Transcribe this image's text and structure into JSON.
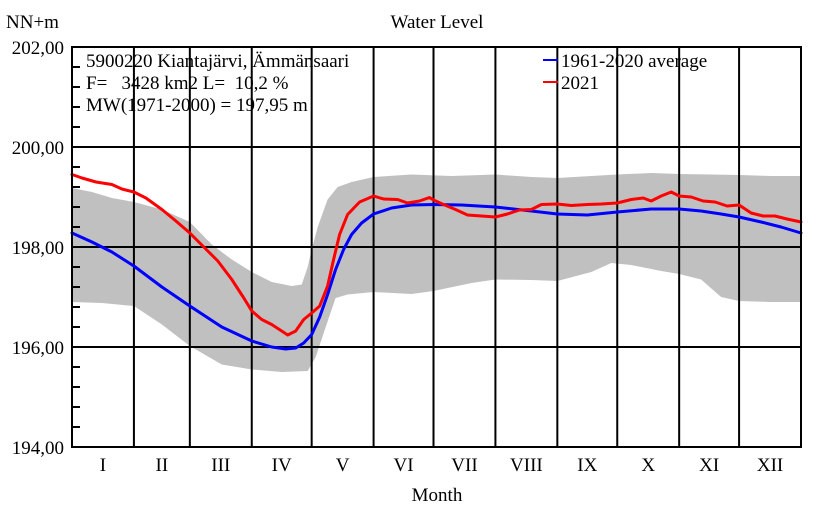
{
  "chart_data": {
    "type": "line",
    "title": "Water Level",
    "ylabel": "NN+m",
    "xlabel": "Month",
    "ylim": [
      194,
      202
    ],
    "xlim_days": [
      0,
      365
    ],
    "yticks": [
      {
        "value": 194,
        "label": "194,00"
      },
      {
        "value": 196,
        "label": "196,00"
      },
      {
        "value": 198,
        "label": "198,00"
      },
      {
        "value": 200,
        "label": "200,00"
      },
      {
        "value": 202,
        "label": "202,00"
      }
    ],
    "months": [
      "I",
      "II",
      "III",
      "IV",
      "V",
      "VI",
      "VII",
      "VIII",
      "IX",
      "X",
      "XI",
      "XII"
    ],
    "month_start_days": [
      0,
      31,
      59,
      90,
      120,
      151,
      181,
      212,
      243,
      273,
      304,
      334
    ],
    "grid": true,
    "legend_position": "top-right",
    "info_lines": [
      "5900220 Kiantajärvi, Ämmänsaari",
      "F=   3428 km2 L=  10,2 %",
      "MW(1971-2000) = 197,95 m"
    ],
    "band": {
      "name": "range",
      "color": "#c0c0c0",
      "upper": [
        [
          0,
          199.18
        ],
        [
          10,
          199.1
        ],
        [
          20,
          198.98
        ],
        [
          31,
          198.9
        ],
        [
          45,
          198.75
        ],
        [
          59,
          198.5
        ],
        [
          70,
          198.05
        ],
        [
          80,
          197.75
        ],
        [
          90,
          197.5
        ],
        [
          100,
          197.3
        ],
        [
          110,
          197.22
        ],
        [
          115,
          197.25
        ],
        [
          118,
          197.6
        ],
        [
          120,
          197.95
        ],
        [
          123,
          198.4
        ],
        [
          128,
          198.95
        ],
        [
          133,
          199.2
        ],
        [
          140,
          199.3
        ],
        [
          151,
          199.4
        ],
        [
          170,
          199.45
        ],
        [
          190,
          199.42
        ],
        [
          212,
          199.45
        ],
        [
          230,
          199.4
        ],
        [
          243,
          199.38
        ],
        [
          260,
          199.42
        ],
        [
          273,
          199.45
        ],
        [
          290,
          199.48
        ],
        [
          304,
          199.46
        ],
        [
          320,
          199.45
        ],
        [
          334,
          199.44
        ],
        [
          350,
          199.42
        ],
        [
          365,
          199.42
        ]
      ],
      "lower": [
        [
          0,
          196.9
        ],
        [
          15,
          196.88
        ],
        [
          31,
          196.82
        ],
        [
          45,
          196.45
        ],
        [
          59,
          196.02
        ],
        [
          75,
          195.65
        ],
        [
          90,
          195.55
        ],
        [
          105,
          195.5
        ],
        [
          118,
          195.52
        ],
        [
          122,
          195.8
        ],
        [
          127,
          196.4
        ],
        [
          132,
          196.98
        ],
        [
          138,
          197.05
        ],
        [
          151,
          197.1
        ],
        [
          170,
          197.06
        ],
        [
          181,
          197.12
        ],
        [
          200,
          197.28
        ],
        [
          212,
          197.35
        ],
        [
          230,
          197.34
        ],
        [
          243,
          197.32
        ],
        [
          260,
          197.5
        ],
        [
          270,
          197.68
        ],
        [
          280,
          197.64
        ],
        [
          295,
          197.52
        ],
        [
          304,
          197.46
        ],
        [
          315,
          197.35
        ],
        [
          325,
          197.0
        ],
        [
          334,
          196.92
        ],
        [
          350,
          196.9
        ],
        [
          365,
          196.9
        ]
      ]
    },
    "series": [
      {
        "name": "1961-2020 average",
        "color": "#0000ff",
        "points": [
          [
            0,
            198.28
          ],
          [
            10,
            198.1
          ],
          [
            20,
            197.9
          ],
          [
            31,
            197.62
          ],
          [
            45,
            197.2
          ],
          [
            59,
            196.82
          ],
          [
            75,
            196.4
          ],
          [
            90,
            196.12
          ],
          [
            100,
            196.0
          ],
          [
            107,
            195.96
          ],
          [
            112,
            195.98
          ],
          [
            116,
            196.08
          ],
          [
            120,
            196.25
          ],
          [
            124,
            196.6
          ],
          [
            128,
            197.05
          ],
          [
            132,
            197.55
          ],
          [
            136,
            197.95
          ],
          [
            140,
            198.25
          ],
          [
            145,
            198.48
          ],
          [
            151,
            198.66
          ],
          [
            160,
            198.78
          ],
          [
            170,
            198.84
          ],
          [
            181,
            198.85
          ],
          [
            195,
            198.84
          ],
          [
            212,
            198.8
          ],
          [
            230,
            198.72
          ],
          [
            243,
            198.66
          ],
          [
            258,
            198.64
          ],
          [
            273,
            198.7
          ],
          [
            290,
            198.76
          ],
          [
            304,
            198.76
          ],
          [
            315,
            198.72
          ],
          [
            325,
            198.66
          ],
          [
            334,
            198.6
          ],
          [
            345,
            198.5
          ],
          [
            355,
            198.4
          ],
          [
            365,
            198.28
          ]
        ]
      },
      {
        "name": "2021",
        "color": "#ff0000",
        "points": [
          [
            0,
            199.45
          ],
          [
            5,
            199.38
          ],
          [
            12,
            199.3
          ],
          [
            20,
            199.25
          ],
          [
            25,
            199.16
          ],
          [
            31,
            199.1
          ],
          [
            37,
            198.98
          ],
          [
            45,
            198.75
          ],
          [
            52,
            198.52
          ],
          [
            59,
            198.28
          ],
          [
            66,
            198.0
          ],
          [
            73,
            197.72
          ],
          [
            80,
            197.35
          ],
          [
            86,
            196.98
          ],
          [
            90,
            196.72
          ],
          [
            95,
            196.55
          ],
          [
            100,
            196.45
          ],
          [
            105,
            196.32
          ],
          [
            108,
            196.24
          ],
          [
            112,
            196.32
          ],
          [
            116,
            196.55
          ],
          [
            120,
            196.68
          ],
          [
            124,
            196.82
          ],
          [
            128,
            197.22
          ],
          [
            131,
            197.75
          ],
          [
            134,
            198.25
          ],
          [
            138,
            198.65
          ],
          [
            144,
            198.9
          ],
          [
            151,
            199.02
          ],
          [
            156,
            198.96
          ],
          [
            163,
            198.95
          ],
          [
            168,
            198.88
          ],
          [
            174,
            198.92
          ],
          [
            179,
            198.99
          ],
          [
            181,
            198.94
          ],
          [
            186,
            198.85
          ],
          [
            192,
            198.75
          ],
          [
            198,
            198.64
          ],
          [
            205,
            198.62
          ],
          [
            212,
            198.6
          ],
          [
            218,
            198.66
          ],
          [
            224,
            198.74
          ],
          [
            230,
            198.75
          ],
          [
            235,
            198.85
          ],
          [
            243,
            198.86
          ],
          [
            250,
            198.83
          ],
          [
            258,
            198.85
          ],
          [
            265,
            198.86
          ],
          [
            273,
            198.88
          ],
          [
            280,
            198.95
          ],
          [
            286,
            198.98
          ],
          [
            290,
            198.92
          ],
          [
            295,
            199.02
          ],
          [
            300,
            199.1
          ],
          [
            304,
            199.02
          ],
          [
            310,
            199.0
          ],
          [
            316,
            198.92
          ],
          [
            322,
            198.9
          ],
          [
            328,
            198.82
          ],
          [
            334,
            198.84
          ],
          [
            340,
            198.68
          ],
          [
            346,
            198.62
          ],
          [
            352,
            198.62
          ],
          [
            358,
            198.56
          ],
          [
            365,
            198.5
          ]
        ]
      }
    ]
  }
}
